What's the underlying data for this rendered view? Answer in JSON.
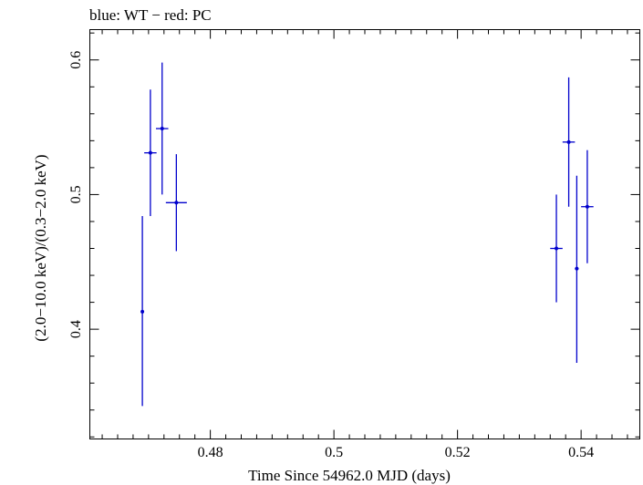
{
  "chart_data": {
    "type": "scatter",
    "title": "blue: WT − red: PC",
    "xlabel": "Time Since 54962.0 MJD (days)",
    "ylabel": "(2.0−10.0 keV)/(0.3−2.0 keV)",
    "xlim": [
      0.4605,
      0.5495
    ],
    "ylim": [
      0.3185,
      0.6225
    ],
    "x_ticks": [
      {
        "value": 0.48,
        "label": "0.48"
      },
      {
        "value": 0.5,
        "label": "0.5"
      },
      {
        "value": 0.52,
        "label": "0.52"
      },
      {
        "value": 0.54,
        "label": "0.54"
      }
    ],
    "y_ticks": [
      {
        "value": 0.4,
        "label": "0.4"
      },
      {
        "value": 0.5,
        "label": "0.5"
      },
      {
        "value": 0.6,
        "label": "0.6"
      }
    ],
    "grid": false,
    "series": [
      {
        "name": "WT",
        "color": "#0000cc",
        "points": [
          {
            "x": 0.469,
            "y": 0.413,
            "xerr": 0.0002,
            "yerr_lo": 0.07,
            "yerr_hi": 0.071
          },
          {
            "x": 0.4703,
            "y": 0.531,
            "xerr": 0.001,
            "yerr_lo": 0.047,
            "yerr_hi": 0.047
          },
          {
            "x": 0.4722,
            "y": 0.549,
            "xerr": 0.001,
            "yerr_lo": 0.049,
            "yerr_hi": 0.049
          },
          {
            "x": 0.4745,
            "y": 0.494,
            "xerr": 0.0017,
            "yerr_lo": 0.036,
            "yerr_hi": 0.036
          },
          {
            "x": 0.536,
            "y": 0.46,
            "xerr": 0.001,
            "yerr_lo": 0.04,
            "yerr_hi": 0.04
          },
          {
            "x": 0.538,
            "y": 0.539,
            "xerr": 0.001,
            "yerr_lo": 0.048,
            "yerr_hi": 0.048
          },
          {
            "x": 0.5393,
            "y": 0.445,
            "xerr": 0.0003,
            "yerr_lo": 0.07,
            "yerr_hi": 0.069
          },
          {
            "x": 0.541,
            "y": 0.491,
            "xerr": 0.001,
            "yerr_lo": 0.042,
            "yerr_hi": 0.042
          }
        ]
      }
    ]
  }
}
